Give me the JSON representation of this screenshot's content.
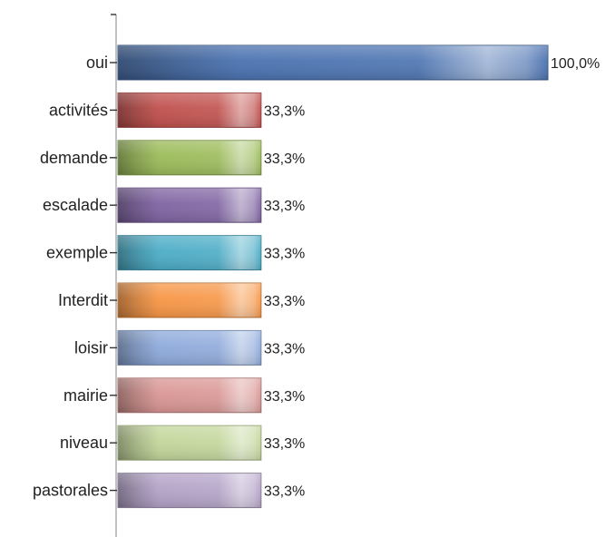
{
  "chart_data": {
    "type": "bar",
    "orientation": "horizontal",
    "categories": [
      "oui",
      "activités",
      "demande",
      "escalade",
      "exemple",
      "Interdit",
      "loisir",
      "mairie",
      "niveau",
      "pastorales"
    ],
    "values": [
      100.0,
      33.3,
      33.3,
      33.3,
      33.3,
      33.3,
      33.3,
      33.3,
      33.3,
      33.3
    ],
    "value_labels": [
      "100,0%",
      "33,3%",
      "33,3%",
      "33,3%",
      "33,3%",
      "33,3%",
      "33,3%",
      "33,3%",
      "33,3%",
      "33,3%"
    ],
    "colors": [
      "#4a72b0",
      "#c0504d",
      "#9bbb59",
      "#8064a2",
      "#4bacc6",
      "#f79646",
      "#8eaadb",
      "#d99694",
      "#c3d69b",
      "#b3a2c7"
    ],
    "xlim": [
      0,
      100
    ],
    "grid": false,
    "title": "",
    "xlabel": "",
    "ylabel": ""
  }
}
